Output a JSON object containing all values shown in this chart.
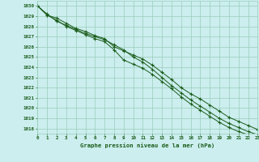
{
  "hours": [
    0,
    1,
    2,
    3,
    4,
    5,
    6,
    7,
    8,
    9,
    10,
    11,
    12,
    13,
    14,
    15,
    16,
    17,
    18,
    19,
    20,
    21,
    22,
    23
  ],
  "line_top": [
    1030.0,
    1029.1,
    1028.8,
    1028.3,
    1027.8,
    1027.5,
    1027.1,
    1026.8,
    1026.0,
    1025.6,
    1025.2,
    1024.8,
    1024.2,
    1023.5,
    1022.8,
    1022.0,
    1021.4,
    1020.9,
    1020.3,
    1019.7,
    1019.1,
    1018.7,
    1018.3,
    1017.9
  ],
  "line_mid": [
    1030.0,
    1029.2,
    1028.5,
    1028.1,
    1027.7,
    1027.3,
    1027.0,
    1026.7,
    1026.2,
    1025.7,
    1025.0,
    1024.5,
    1023.8,
    1023.0,
    1022.2,
    1021.5,
    1020.8,
    1020.2,
    1019.6,
    1019.0,
    1018.5,
    1018.1,
    1017.7,
    1017.4
  ],
  "line_bot": [
    1030.0,
    1029.1,
    1028.6,
    1028.0,
    1027.6,
    1027.2,
    1026.8,
    1026.5,
    1025.7,
    1024.7,
    1024.3,
    1023.9,
    1023.3,
    1022.6,
    1021.9,
    1021.1,
    1020.4,
    1019.8,
    1019.2,
    1018.6,
    1018.1,
    1017.7,
    1017.4,
    1017.1
  ],
  "bg_color": "#cceeee",
  "grid_color": "#99ccbb",
  "line_color": "#1a5c1a",
  "ylabel_values": [
    1018,
    1019,
    1020,
    1021,
    1022,
    1023,
    1024,
    1025,
    1026,
    1027,
    1028,
    1029,
    1030
  ],
  "ylim": [
    1017.5,
    1030.5
  ],
  "xlim": [
    0,
    23
  ],
  "xlabel": "Graphe pression niveau de la mer (hPa)",
  "font_color": "#1a5c1a"
}
